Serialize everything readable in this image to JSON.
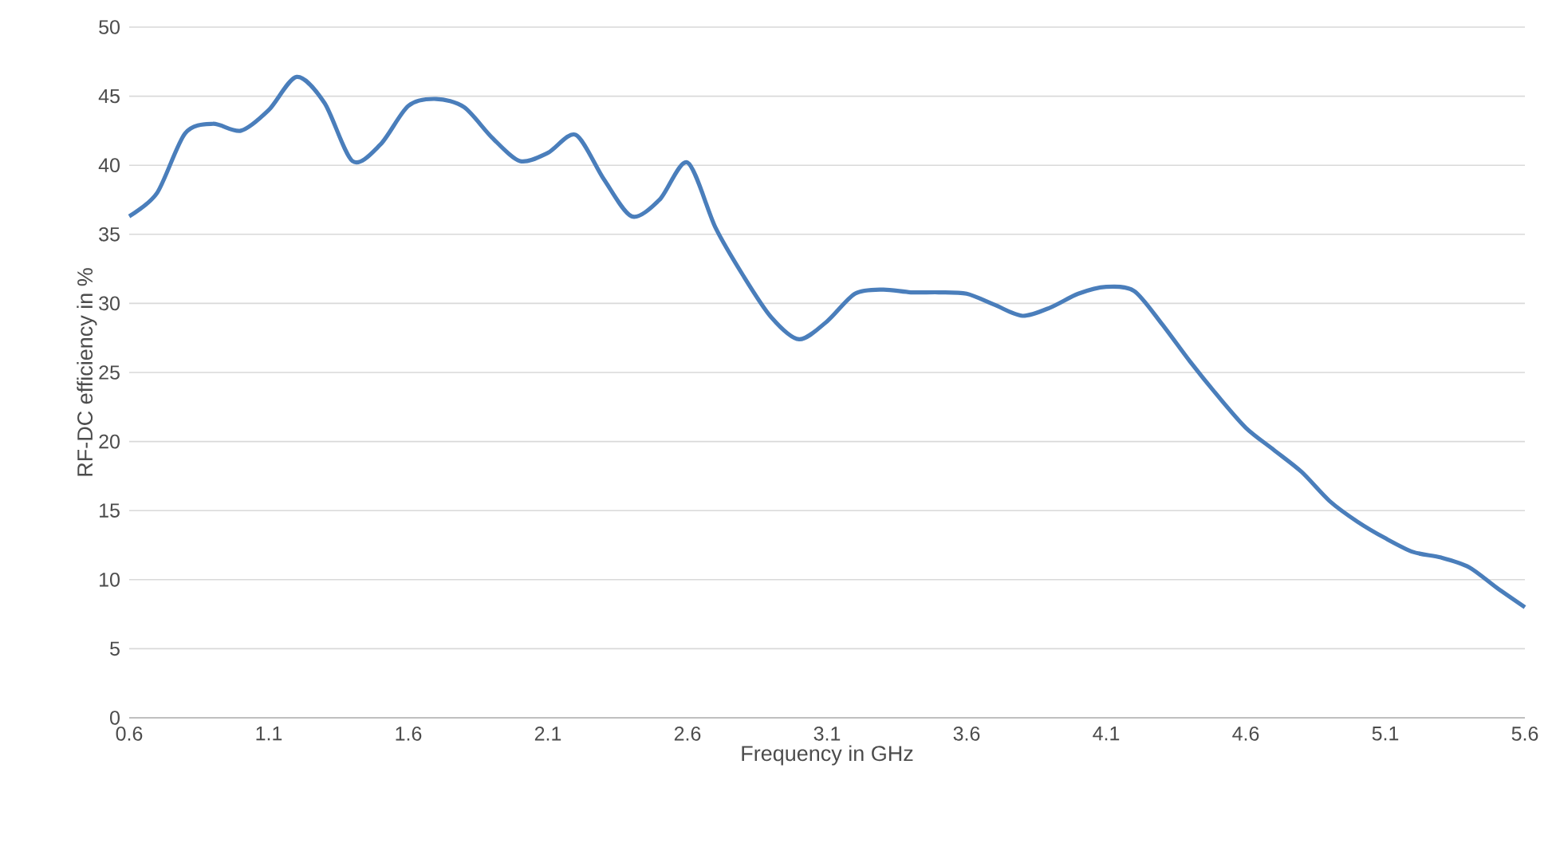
{
  "chart_data": {
    "type": "line",
    "xlabel": "Frequency in GHz",
    "ylabel": "RF-DC efficiency in %",
    "x": [
      0.6,
      0.7,
      0.8,
      0.9,
      1.0,
      1.1,
      1.2,
      1.3,
      1.4,
      1.5,
      1.6,
      1.7,
      1.8,
      1.9,
      2.0,
      2.1,
      2.2,
      2.3,
      2.4,
      2.5,
      2.6,
      2.7,
      2.8,
      2.9,
      3.0,
      3.1,
      3.2,
      3.3,
      3.4,
      3.5,
      3.6,
      3.7,
      3.8,
      3.9,
      4.0,
      4.1,
      4.2,
      4.3,
      4.4,
      4.5,
      4.6,
      4.7,
      4.8,
      4.9,
      5.0,
      5.1,
      5.2,
      5.3,
      5.4,
      5.5,
      5.6
    ],
    "series": [
      {
        "color": "#4a7ebb",
        "values": [
          36.3,
          38,
          42.3,
          43,
          42.5,
          44,
          46.4,
          44.5,
          40.3,
          41.5,
          44.3,
          44.8,
          44.2,
          42,
          40.3,
          40.9,
          42.2,
          39,
          36.3,
          37.5,
          40.2,
          35.5,
          32,
          29,
          27.4,
          28.7,
          30.7,
          31,
          30.8,
          30.8,
          30.7,
          29.9,
          29.1,
          29.7,
          30.7,
          31.2,
          30.9,
          28.5,
          25.8,
          23.3,
          21,
          19.4,
          17.8,
          15.7,
          14.2,
          13,
          12,
          11.6,
          10.9,
          9.4,
          8
        ]
      }
    ],
    "xlim": [
      0.6,
      5.6
    ],
    "xticks": [
      0.6,
      1.1,
      1.6,
      2.1,
      2.6,
      3.1,
      3.6,
      4.1,
      4.6,
      5.1,
      5.6
    ],
    "ylim": [
      0,
      50
    ],
    "yticks": [
      0,
      5,
      10,
      15,
      20,
      25,
      30,
      35,
      40,
      45,
      50
    ],
    "grid": "y",
    "legend": false,
    "marker": "none",
    "line_style": "solid"
  }
}
